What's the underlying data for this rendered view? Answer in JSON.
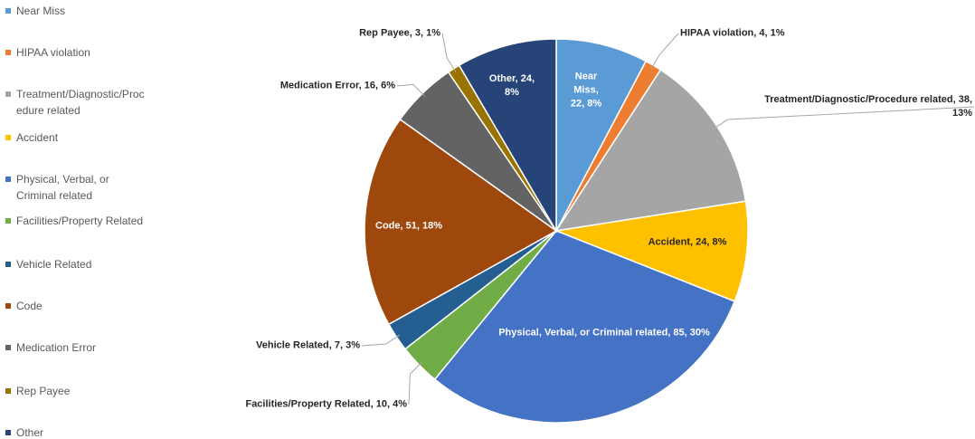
{
  "chart_data": {
    "type": "pie",
    "categories": [
      "Near Miss",
      "HIPAA violation",
      "Treatment/Diagnostic/Procedure related",
      "Accident",
      "Physical, Verbal, or Criminal related",
      "Facilities/Property Related",
      "Vehicle Related",
      "Code",
      "Medication Error",
      "Rep Payee",
      "Other"
    ],
    "values": [
      22,
      4,
      38,
      24,
      85,
      10,
      7,
      51,
      16,
      3,
      24
    ],
    "value_labels": [
      "Near Miss, 22, 8%",
      "HIPAA violation, 4, 1%",
      "Treatment/Diagnostic/Procedure related, 38, 13%",
      "Accident, 24, 8%",
      "Physical, Verbal, or Criminal related, 85, 30%",
      "Facilities/Property Related, 10, 4%",
      "Vehicle Related, 7, 3%",
      "Code, 51, 18%",
      "Medication Error, 16, 6%",
      "Rep Payee, 3, 1%",
      "Other, 24, 8%"
    ],
    "colors": [
      "#5b9bd5",
      "#ed7d31",
      "#a5a5a5",
      "#ffc000",
      "#4472c4",
      "#70ad47",
      "#255e91",
      "#9e480e",
      "#636363",
      "#997300",
      "#264478"
    ],
    "legend": "left"
  }
}
